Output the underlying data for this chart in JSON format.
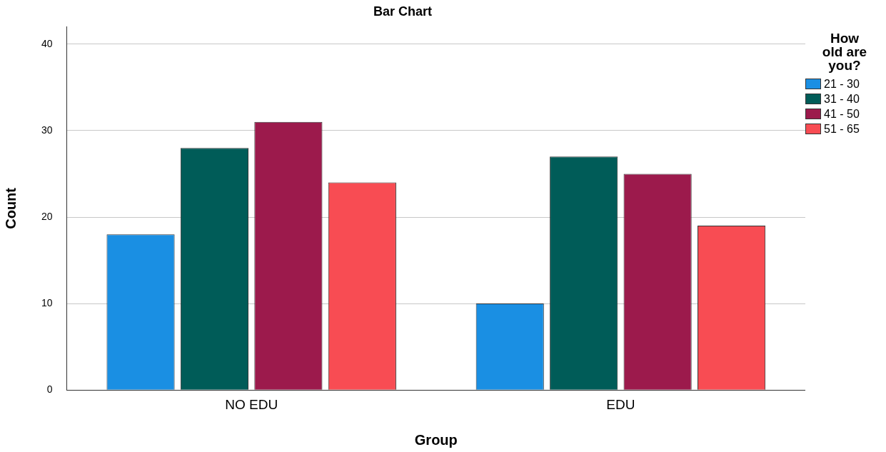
{
  "chart_data": {
    "type": "bar",
    "title": "Bar Chart",
    "xlabel": "Group",
    "ylabel": "Count",
    "legend_title": "How old are you?",
    "categories": [
      "NO EDU",
      "EDU"
    ],
    "series": [
      {
        "name": "21 - 30",
        "color": "#1a8fe3",
        "values": [
          18,
          10
        ]
      },
      {
        "name": "31 - 40",
        "color": "#005c58",
        "values": [
          28,
          27
        ]
      },
      {
        "name": "41 - 50",
        "color": "#9c1a4c",
        "values": [
          31,
          25
        ]
      },
      {
        "name": "51 - 65",
        "color": "#f84c53",
        "values": [
          24,
          19
        ]
      }
    ],
    "ylim": [
      0,
      42
    ],
    "yticks": [
      0,
      10,
      20,
      30,
      40
    ],
    "grid": "y",
    "legend": "top right"
  }
}
